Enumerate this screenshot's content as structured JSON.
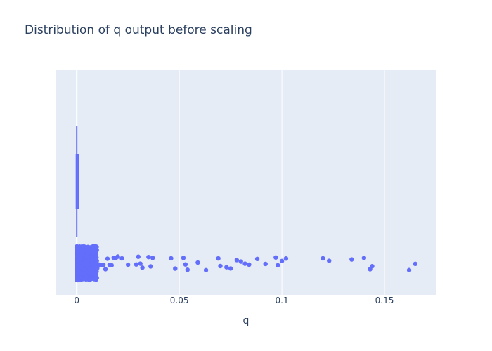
{
  "chart_data": {
    "type": "box",
    "title": "Distribution of q output before scaling",
    "xlabel": "q",
    "ylabel": "",
    "orientation": "horizontal",
    "xlim": [
      -0.01,
      0.175
    ],
    "xticks": [
      0,
      0.05,
      0.1,
      0.15
    ],
    "xtick_labels": [
      "0",
      "0.05",
      "0.1",
      "0.15"
    ],
    "grid": true,
    "colors": {
      "plot_bg": "#e5ecf6",
      "grid": "#ffffff",
      "marker": "#636efa",
      "text": "#2a3f5f"
    },
    "box": {
      "min": 0,
      "q1": 0,
      "median": 0,
      "q3": 0.0005,
      "max": 0.001
    },
    "points": [
      0.046,
      0.048,
      0.052,
      0.053,
      0.054,
      0.059,
      0.063,
      0.069,
      0.07,
      0.073,
      0.075,
      0.078,
      0.08,
      0.082,
      0.084,
      0.088,
      0.092,
      0.097,
      0.098,
      0.1,
      0.102,
      0.12,
      0.123,
      0.134,
      0.14,
      0.143,
      0.144,
      0.162,
      0.165,
      0.02,
      0.022,
      0.025,
      0.029,
      0.03,
      0.031,
      0.032,
      0.035,
      0.036,
      0.037,
      0.012,
      0.013,
      0.014,
      0.015,
      0.016,
      0.017,
      0.018,
      0.019,
      0.009,
      0.01,
      0.011
    ]
  }
}
